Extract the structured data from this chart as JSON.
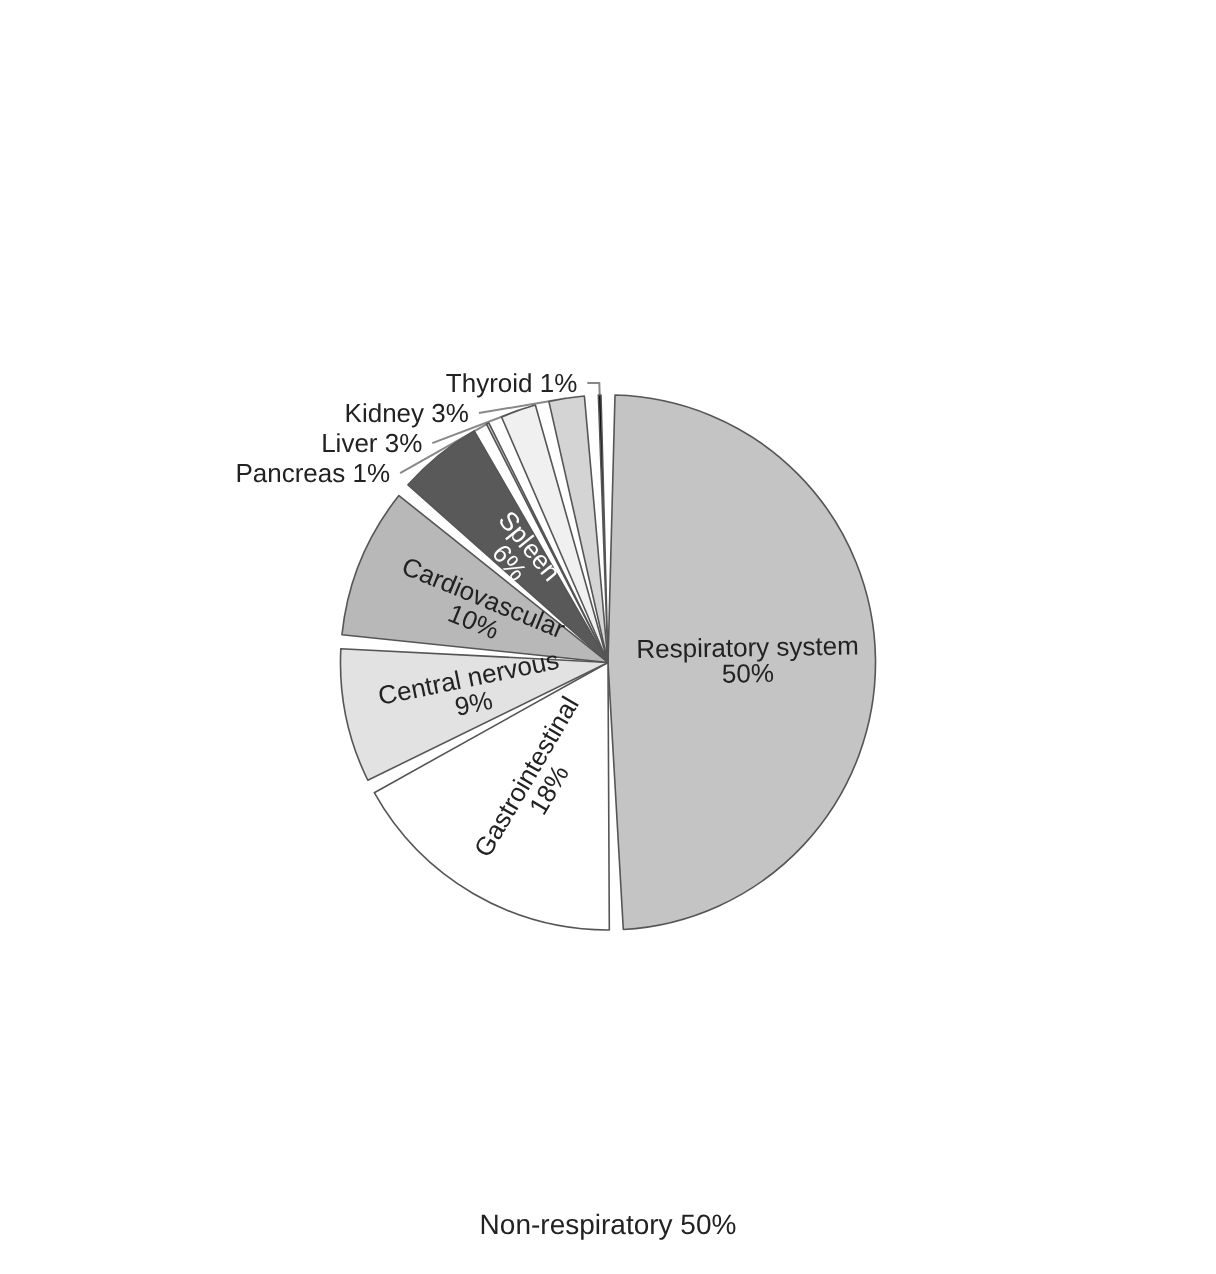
{
  "chart_data": {
    "type": "pie",
    "categories": [
      "Respiratory system",
      "Gastrointestinal",
      "Central nervous",
      "Cardiovascular",
      "Spleen",
      "Pancreas",
      "Liver",
      "Kidney",
      "Thyroid"
    ],
    "values": [
      50,
      18,
      9,
      10,
      6,
      1,
      3,
      3,
      1
    ],
    "colors": [
      "#c4c4c4",
      "#ffffff",
      "#e2e2e2",
      "#b8b8b8",
      "#595959",
      "#c8c8c8",
      "#f0f0f0",
      "#d4d4d4",
      "#000000"
    ],
    "value_labels": [
      "50%",
      "18%",
      "9%",
      "10%",
      "6%",
      "1%",
      "3%",
      "3%",
      "1%"
    ],
    "annotations": [
      "Non-respiratory 50%"
    ]
  }
}
